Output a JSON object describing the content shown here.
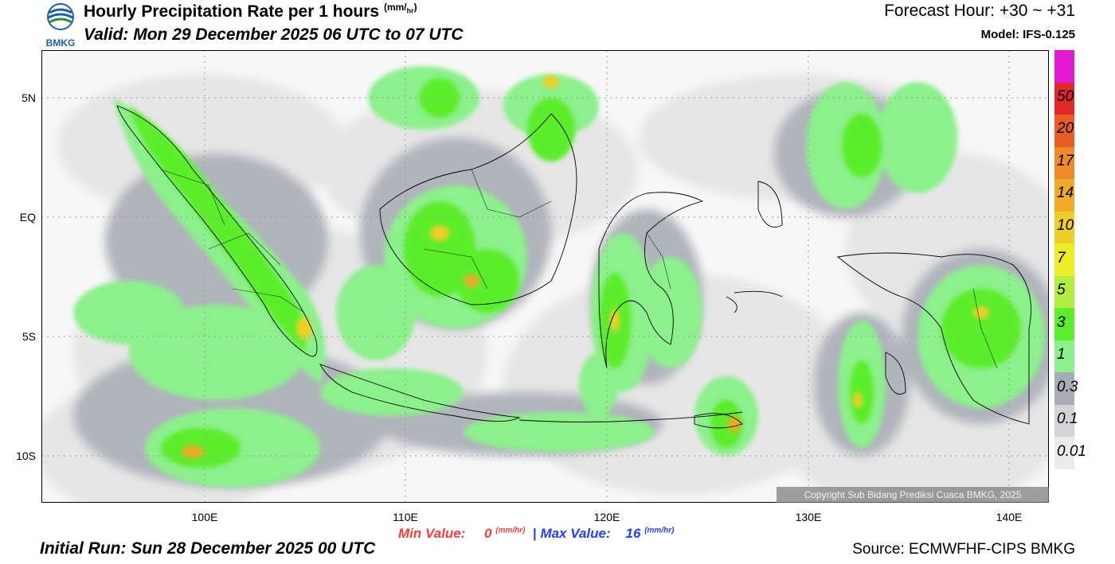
{
  "header": {
    "title": "Hourly Precipitation Rate per 1 hours",
    "title_unit_num": "mm",
    "title_unit_den": "hr",
    "valid": "Valid: Mon 29 December 2025 06 UTC to 07 UTC",
    "forecast_hour": "Forecast Hour: +30 ~ +31",
    "model": "Model: IFS-0.125",
    "logo_text": "BMKG"
  },
  "map": {
    "lat_ticks": [
      "5N",
      "EQ",
      "5S",
      "10S"
    ],
    "lon_ticks": [
      "100E",
      "110E",
      "120E",
      "130E",
      "140E"
    ],
    "copyright": "Copyright Sub Bidang Prediksi Cuaca BMKG, 2025"
  },
  "colorbar": {
    "labels": [
      "50",
      "20",
      "17",
      "14",
      "10",
      "7",
      "5",
      "3",
      "1",
      "0.3",
      "0.1",
      "0.01"
    ],
    "colors": [
      "#e21bd2",
      "#e02828",
      "#e85c28",
      "#ee8a28",
      "#eeaa28",
      "#eecf28",
      "#eeee28",
      "#b2ee40",
      "#5ced2c",
      "#8cf08c",
      "#a8acb4",
      "#d2d4d8",
      "#ebebeb"
    ]
  },
  "stats": {
    "min_label": "Min Value:",
    "min_value": "0",
    "max_label": "Max Value:",
    "max_value": "16",
    "unit_num": "mm",
    "unit_den": "hr",
    "separator": "|"
  },
  "footer": {
    "initial_run": "Initial Run: Sun 28 December 2025 00 UTC",
    "source": "Source: ECMWFHF-CIPS BMKG"
  }
}
